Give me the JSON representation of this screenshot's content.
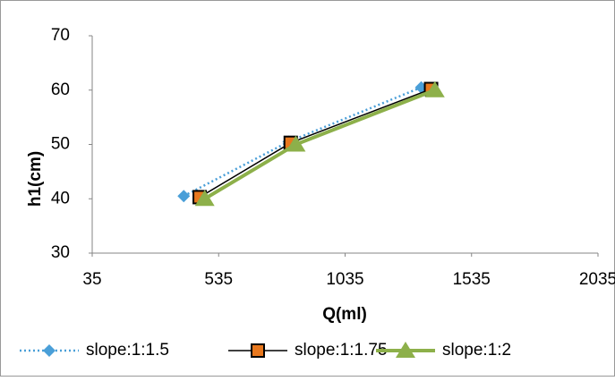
{
  "chart_data": {
    "type": "line",
    "x_label": "Q(ml)",
    "y_label": "h1(cm)",
    "xlim": [
      35,
      2035
    ],
    "xticks": [
      35,
      535,
      1035,
      1535,
      2035
    ],
    "ylim": [
      30,
      70
    ],
    "yticks": [
      30,
      40,
      50,
      60,
      70
    ],
    "grid": false,
    "legend": "bottom",
    "series": [
      {
        "name": "slope:1:1.5",
        "color": "#4a9fd8",
        "line_color": "#4a9fd8",
        "dash": "dotted",
        "marker": "diamond",
        "x": [
          397,
          812,
          1336
        ],
        "values": [
          40.5,
          50.5,
          60.5
        ]
      },
      {
        "name": "slope:1:1.75",
        "color": "#e8781e",
        "line_color": "#000000",
        "dash": "solid",
        "marker": "square",
        "x": [
          460,
          820,
          1375
        ],
        "values": [
          40.3,
          50.3,
          60.2
        ]
      },
      {
        "name": "slope:1:2",
        "color": "#8db04a",
        "line_color": "#8db04a",
        "dash": "solid",
        "marker": "triangle",
        "x": [
          480,
          840,
          1390
        ],
        "values": [
          40,
          50,
          60
        ]
      }
    ]
  }
}
